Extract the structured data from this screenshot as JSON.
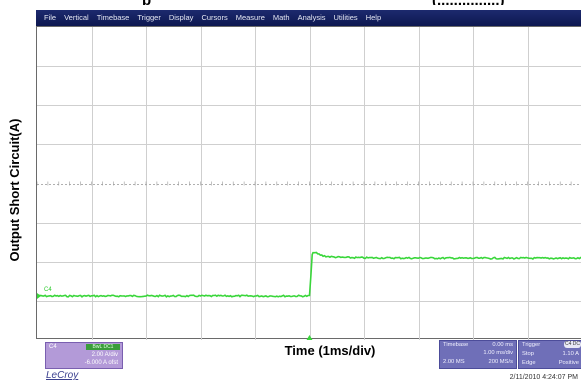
{
  "page_title": {
    "text_left": "p",
    "text_right": "(...............)"
  },
  "menu": [
    "File",
    "Vertical",
    "Timebase",
    "Trigger",
    "Display",
    "Cursors",
    "Measure",
    "Math",
    "Analysis",
    "Utilities",
    "Help"
  ],
  "axis": {
    "ylabel": "Output Short Circuit(A)",
    "xlabel": "Time (1ms/div)"
  },
  "trace_color": "#39d63a",
  "channel_marker": "C4",
  "channel_box": {
    "name": "C4",
    "badge": "BwL DC1",
    "scale": "2.00 A/div",
    "offset": "-6.000 A ofst"
  },
  "timebase_box": {
    "label": "Timebase",
    "delay": "0.00 ms",
    "per_div": "1.00 ms/div",
    "samples": "2.00 MS",
    "rate": "200 MS/s"
  },
  "trigger_box": {
    "label": "Trigger",
    "badge": "C4 DC",
    "mode": "Stop",
    "level": "1.10 A",
    "type": "Edge",
    "slope": "Positive"
  },
  "brand": "LeCroy",
  "datetime": "2/11/2010 4:24:07 PM",
  "chart_data": {
    "type": "line",
    "xlabel": "Time (1ms/div)",
    "ylabel": "Output Short Circuit(A)",
    "grid": true,
    "x_divisions": 10,
    "y_divisions": 8,
    "series": [
      {
        "x": [
          0,
          1,
          2,
          3,
          4,
          5,
          5.05,
          5.08,
          5.15,
          5.25,
          5.4,
          5.6,
          6,
          7,
          8,
          9,
          10
        ],
        "y": [
          0.0,
          0.0,
          0.0,
          0.0,
          0.0,
          0.0,
          2.1,
          2.25,
          2.15,
          2.05,
          2.0,
          1.97,
          1.95,
          1.94,
          1.93,
          1.93,
          1.93
        ]
      }
    ],
    "units": {
      "x": "ms",
      "y": "A"
    }
  }
}
